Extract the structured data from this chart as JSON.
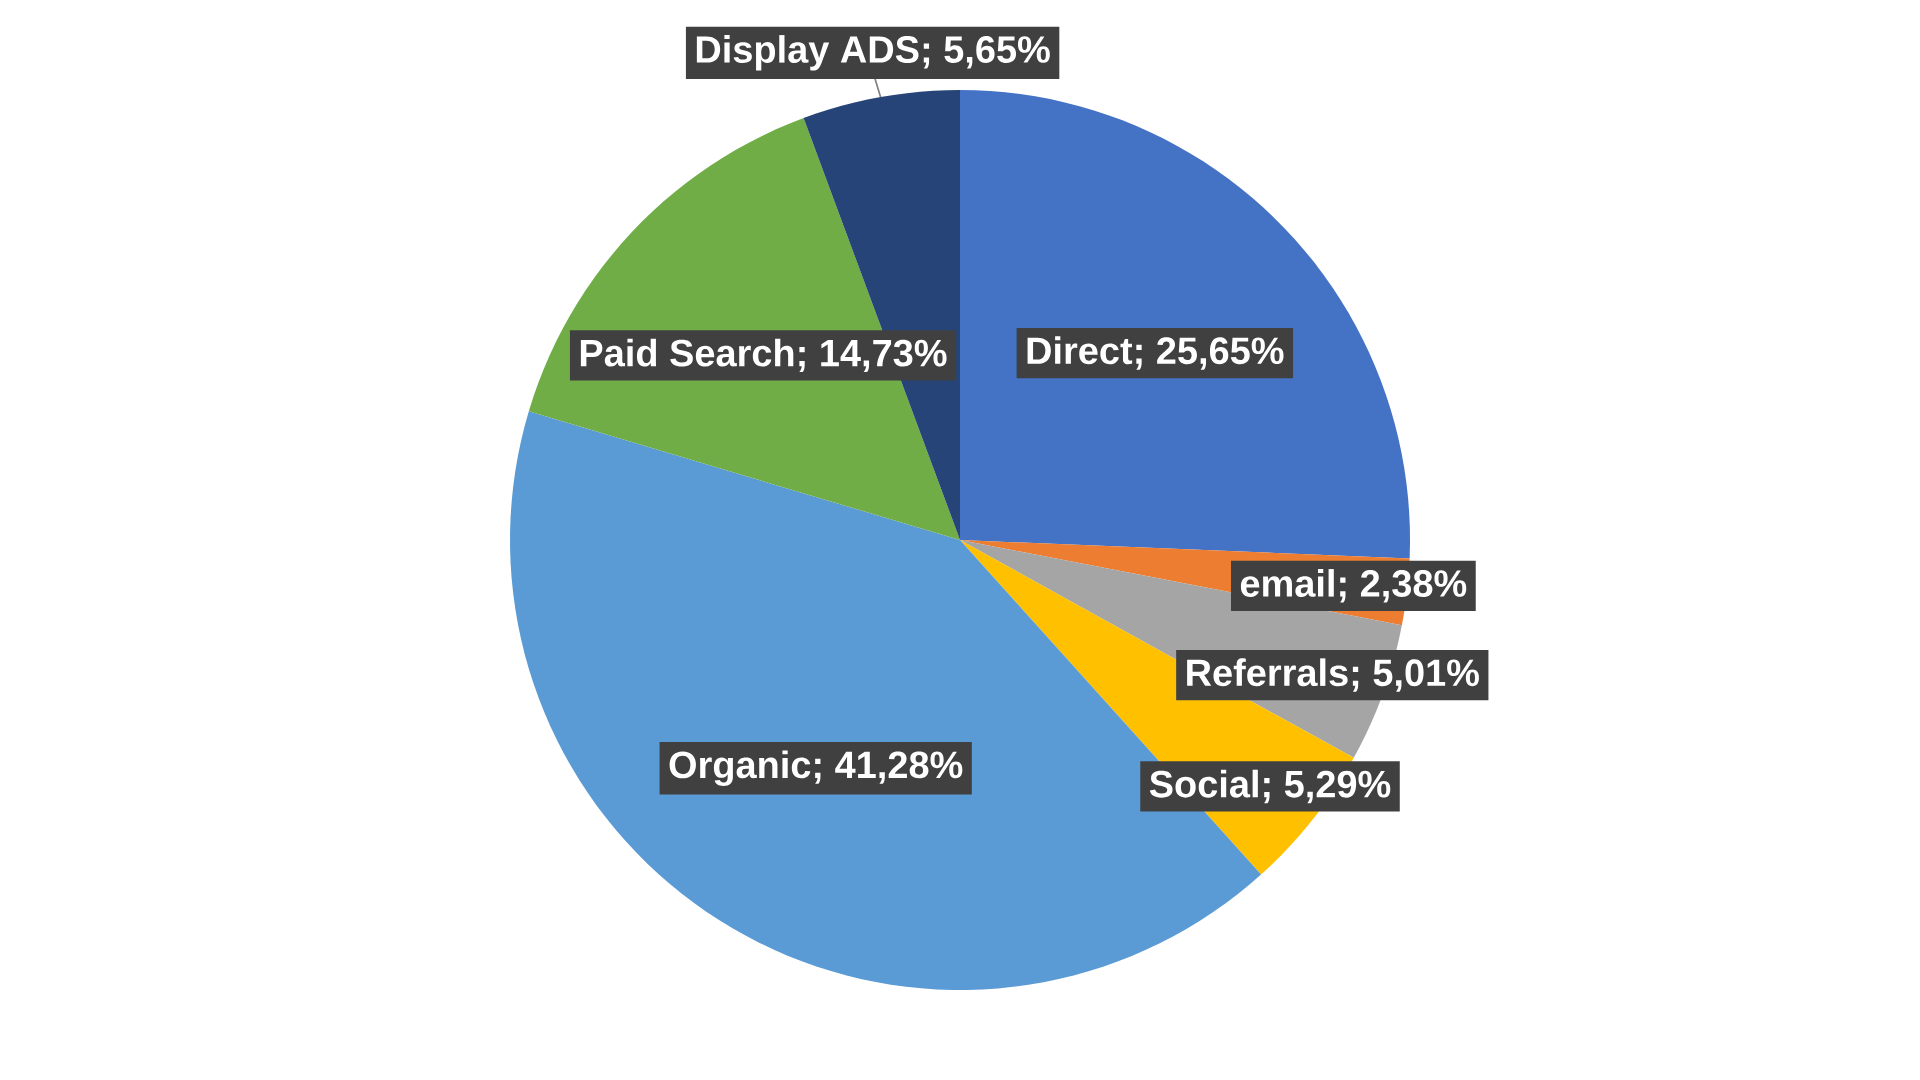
{
  "chart_data": {
    "type": "pie",
    "categories": [
      "Direct",
      "email",
      "Referrals",
      "Social",
      "Organic",
      "Paid Search",
      "Display ADS"
    ],
    "values": [
      25.65,
      2.38,
      5.01,
      5.29,
      41.28,
      14.73,
      5.65
    ],
    "value_labels": [
      "; 25,65%",
      "; 2,38%",
      "; 5,01%",
      "; 5,29%",
      "; 41,28%",
      "; 14,73%",
      "; 5,65%"
    ],
    "colors": [
      "#4472c4",
      "#ed7d31",
      "#a5a5a5",
      "#ffc000",
      "#5b9bd5",
      "#70ad47",
      "#264478"
    ]
  }
}
